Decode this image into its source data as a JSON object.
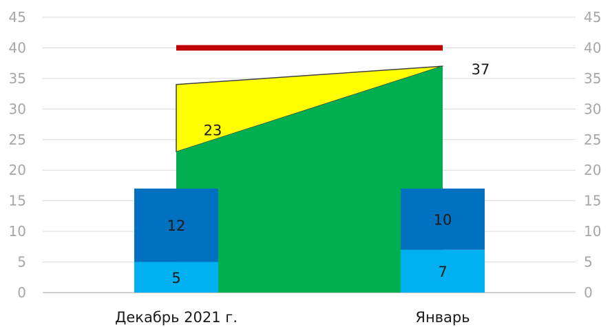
{
  "chart_data": {
    "type": "bar",
    "categories": [
      "Декабрь 2021 г.",
      "Январь"
    ],
    "ylim": [
      0,
      45
    ],
    "yticks": [
      0,
      5,
      10,
      15,
      20,
      25,
      30,
      35,
      40,
      45
    ],
    "grid": true,
    "right_axis": true,
    "series": [
      {
        "kind": "stacked-bar",
        "values": [
          5,
          7
        ],
        "labels": [
          "5",
          "7"
        ],
        "color": "#00b0f0"
      },
      {
        "kind": "stacked-bar",
        "values": [
          12,
          10
        ],
        "labels": [
          "12",
          "10"
        ],
        "color": "#0070c0"
      },
      {
        "kind": "area",
        "values": [
          23,
          37
        ],
        "labels": [
          "23",
          "37"
        ],
        "color": "#00b050"
      },
      {
        "kind": "area-upper",
        "values": [
          34,
          37
        ],
        "color": "#ffff00"
      },
      {
        "kind": "line",
        "values": [
          40,
          40
        ],
        "color": "#c00000"
      }
    ]
  }
}
